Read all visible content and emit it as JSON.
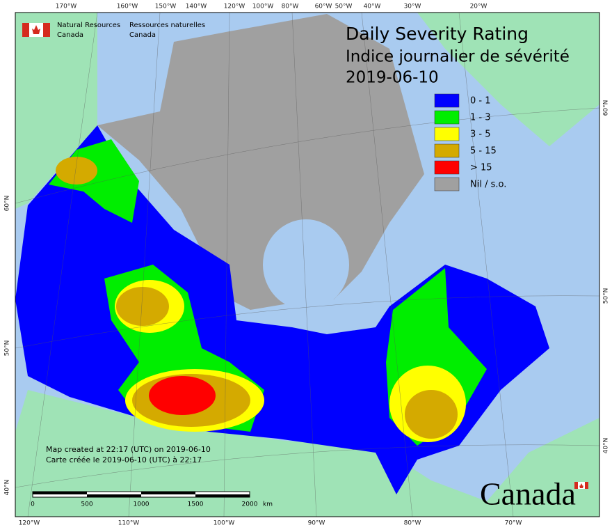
{
  "header": {
    "agency_en": "Natural Resources",
    "agency_en2": "Canada",
    "agency_fr": "Ressources naturelles",
    "agency_fr2": "Canada"
  },
  "title": {
    "en": "Daily Severity Rating",
    "fr": "Indice journalier de sévérité",
    "date": "2019-06-10"
  },
  "legend": [
    {
      "label": "0 - 1",
      "color": "#0000ff"
    },
    {
      "label": "1 - 3",
      "color": "#00ee00"
    },
    {
      "label": "3 - 5",
      "color": "#ffff00"
    },
    {
      "label": "5 - 15",
      "color": "#d4aa00"
    },
    {
      "label": "> 15",
      "color": "#ff0000"
    },
    {
      "label": "Nil / s.o.",
      "color": "#a0a0a0"
    }
  ],
  "note": {
    "en": "Map created at 22:17 (UTC) on 2019-06-10",
    "fr": "Carte créée le 2019-06-10 (UTC) à 22:17"
  },
  "scale_bar": {
    "labels": [
      "0",
      "500",
      "1000",
      "1500",
      "2000"
    ],
    "unit": "km"
  },
  "graticule": {
    "top": [
      "170°W",
      "160°W",
      "150°W",
      "140°W",
      "120°W",
      "100°W",
      "80°W",
      "60°W",
      "50°W",
      "40°W",
      "30°W",
      "20°W"
    ],
    "bottom": [
      "120°W",
      "110°W",
      "100°W",
      "90°W",
      "80°W",
      "70°W"
    ],
    "left": [
      "60°N",
      "50°N",
      "40°N"
    ],
    "right": [
      "60°N",
      "50°N",
      "40°N"
    ]
  },
  "wordmark": "Canada"
}
